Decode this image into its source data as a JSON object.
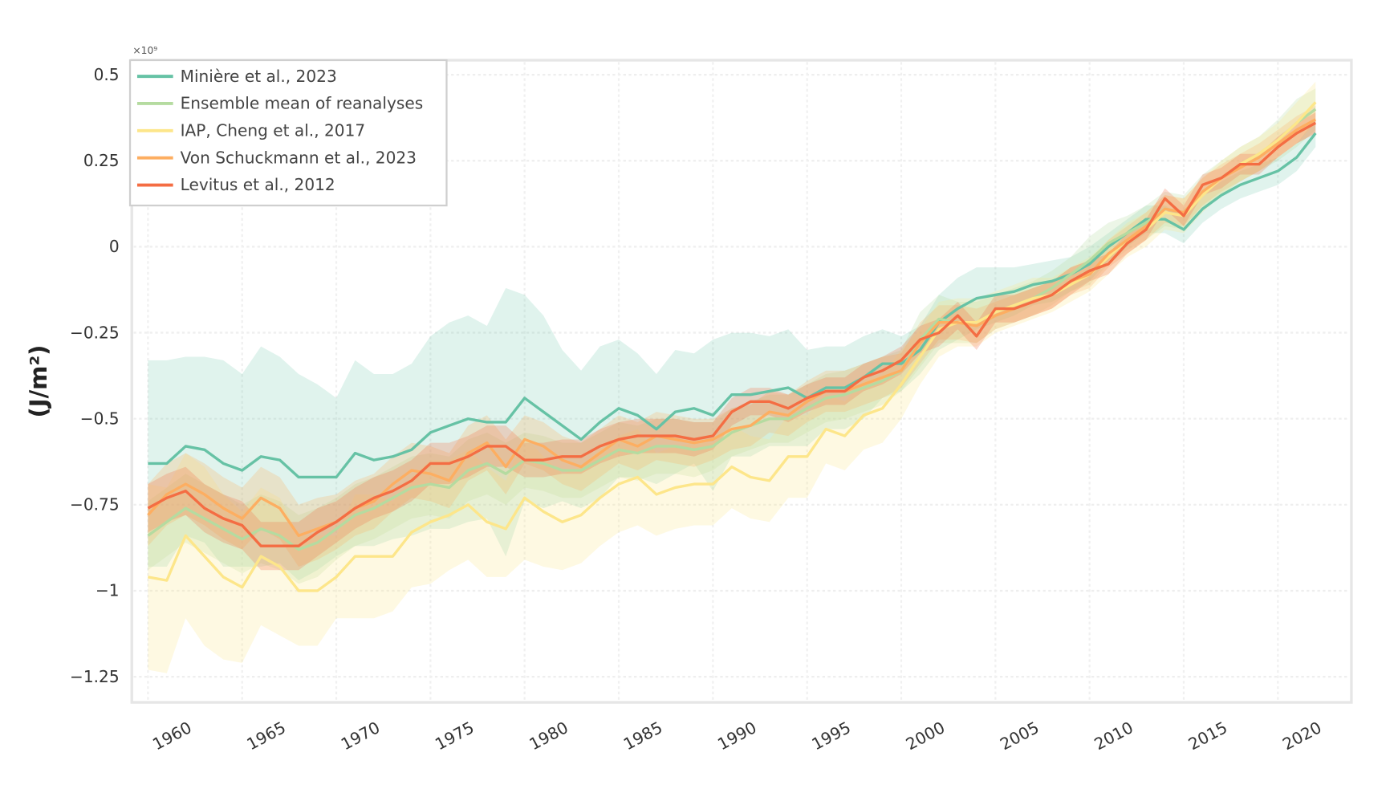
{
  "chart_data": {
    "type": "line",
    "title": "",
    "xlabel": "",
    "ylabel": "(J/m²)",
    "y_multiplier": "×10⁹",
    "xlim": [
      1958,
      2023
    ],
    "ylim": [
      -1.3,
      0.55
    ],
    "grid": true,
    "legend_position": "top-left",
    "x_ticks": [
      "1960",
      "1965",
      "1970",
      "1975",
      "1980",
      "1985",
      "1990",
      "1995",
      "2000",
      "2005",
      "2010",
      "2015",
      "2020"
    ],
    "y_ticks": [
      {
        "value": 0.5,
        "label": "0.5"
      },
      {
        "value": 0.25,
        "label": "0.25"
      },
      {
        "value": 0,
        "label": "0"
      },
      {
        "value": -0.25,
        "label": "−0.25"
      },
      {
        "value": -0.5,
        "label": "−0.5"
      },
      {
        "value": -0.75,
        "label": "−0.75"
      },
      {
        "value": -1,
        "label": "−1"
      },
      {
        "value": -1.25,
        "label": "−1.25"
      }
    ],
    "x_start": 1960,
    "series": [
      {
        "name": "Minière et al., 2023",
        "color": "#66c2a5",
        "values": [
          -0.63,
          -0.63,
          -0.58,
          -0.59,
          -0.63,
          -0.65,
          -0.61,
          -0.62,
          -0.67,
          -0.67,
          -0.67,
          -0.6,
          -0.62,
          -0.61,
          -0.59,
          -0.54,
          -0.52,
          -0.5,
          -0.51,
          -0.51,
          -0.44,
          -0.48,
          -0.52,
          -0.56,
          -0.51,
          -0.47,
          -0.49,
          -0.53,
          -0.48,
          -0.47,
          -0.49,
          -0.43,
          -0.43,
          -0.42,
          -0.41,
          -0.44,
          -0.41,
          -0.41,
          -0.38,
          -0.34,
          -0.34,
          -0.3,
          -0.22,
          -0.18,
          -0.15,
          -0.14,
          -0.13,
          -0.11,
          -0.1,
          -0.08,
          -0.05,
          0.0,
          0.04,
          0.08,
          0.08,
          0.05,
          0.11,
          0.15,
          0.18,
          0.2,
          0.22,
          0.26,
          0.33
        ],
        "uncertainty": [
          0.3,
          0.3,
          0.26,
          0.27,
          0.3,
          0.28,
          0.32,
          0.3,
          0.3,
          0.27,
          0.23,
          0.27,
          0.25,
          0.24,
          0.25,
          0.28,
          0.3,
          0.3,
          0.28,
          0.39,
          0.3,
          0.28,
          0.22,
          0.2,
          0.22,
          0.2,
          0.18,
          0.16,
          0.18,
          0.16,
          0.22,
          0.18,
          0.18,
          0.16,
          0.17,
          0.14,
          0.12,
          0.12,
          0.12,
          0.1,
          0.08,
          0.07,
          0.08,
          0.09,
          0.09,
          0.08,
          0.07,
          0.06,
          0.06,
          0.05,
          0.05,
          0.04,
          0.04,
          0.04,
          0.04,
          0.04,
          0.04,
          0.04,
          0.04,
          0.04,
          0.04,
          0.04,
          0.04
        ]
      },
      {
        "name": "Ensemble mean of reanalyses",
        "color": "#b5dba0",
        "values": [
          -0.84,
          -0.8,
          -0.76,
          -0.79,
          -0.82,
          -0.85,
          -0.82,
          -0.84,
          -0.88,
          -0.86,
          -0.82,
          -0.78,
          -0.76,
          -0.73,
          -0.7,
          -0.69,
          -0.7,
          -0.65,
          -0.63,
          -0.66,
          -0.62,
          -0.63,
          -0.65,
          -0.65,
          -0.62,
          -0.59,
          -0.6,
          -0.58,
          -0.58,
          -0.59,
          -0.58,
          -0.54,
          -0.52,
          -0.5,
          -0.5,
          -0.47,
          -0.44,
          -0.43,
          -0.41,
          -0.39,
          -0.36,
          -0.27,
          -0.21,
          -0.22,
          -0.22,
          -0.19,
          -0.17,
          -0.15,
          -0.12,
          -0.08,
          -0.04,
          0.01,
          0.04,
          0.07,
          0.11,
          0.1,
          0.16,
          0.2,
          0.24,
          0.27,
          0.31,
          0.36,
          0.4
        ],
        "uncertainty": [
          0.1,
          0.1,
          0.1,
          0.1,
          0.1,
          0.1,
          0.1,
          0.1,
          0.1,
          0.1,
          0.09,
          0.09,
          0.09,
          0.09,
          0.09,
          0.09,
          0.09,
          0.09,
          0.09,
          0.09,
          0.08,
          0.08,
          0.08,
          0.08,
          0.08,
          0.08,
          0.08,
          0.08,
          0.08,
          0.08,
          0.07,
          0.07,
          0.07,
          0.07,
          0.07,
          0.07,
          0.07,
          0.07,
          0.07,
          0.07,
          0.06,
          0.08,
          0.07,
          0.06,
          0.06,
          0.05,
          0.05,
          0.05,
          0.05,
          0.05,
          0.07,
          0.06,
          0.05,
          0.05,
          0.05,
          0.05,
          0.05,
          0.05,
          0.05,
          0.05,
          0.06,
          0.07,
          0.06
        ]
      },
      {
        "name": "IAP, Cheng et al., 2017",
        "color": "#fde68a",
        "values": [
          -0.96,
          -0.97,
          -0.84,
          -0.9,
          -0.96,
          -0.99,
          -0.9,
          -0.93,
          -1.0,
          -1.0,
          -0.96,
          -0.9,
          -0.9,
          -0.9,
          -0.83,
          -0.8,
          -0.78,
          -0.75,
          -0.8,
          -0.82,
          -0.73,
          -0.77,
          -0.8,
          -0.78,
          -0.73,
          -0.69,
          -0.67,
          -0.72,
          -0.7,
          -0.69,
          -0.69,
          -0.64,
          -0.67,
          -0.68,
          -0.61,
          -0.61,
          -0.53,
          -0.55,
          -0.49,
          -0.47,
          -0.4,
          -0.32,
          -0.24,
          -0.22,
          -0.22,
          -0.19,
          -0.17,
          -0.15,
          -0.14,
          -0.11,
          -0.08,
          -0.03,
          0.02,
          0.05,
          0.1,
          0.09,
          0.15,
          0.2,
          0.24,
          0.27,
          0.31,
          0.36,
          0.42
        ],
        "uncertainty": [
          0.27,
          0.27,
          0.24,
          0.26,
          0.24,
          0.22,
          0.2,
          0.2,
          0.16,
          0.16,
          0.12,
          0.18,
          0.18,
          0.16,
          0.16,
          0.18,
          0.16,
          0.16,
          0.16,
          0.14,
          0.18,
          0.16,
          0.14,
          0.14,
          0.14,
          0.14,
          0.14,
          0.12,
          0.12,
          0.12,
          0.12,
          0.12,
          0.12,
          0.12,
          0.12,
          0.12,
          0.1,
          0.1,
          0.1,
          0.1,
          0.1,
          0.08,
          0.08,
          0.07,
          0.07,
          0.06,
          0.06,
          0.06,
          0.05,
          0.05,
          0.05,
          0.05,
          0.05,
          0.05,
          0.05,
          0.05,
          0.05,
          0.05,
          0.05,
          0.05,
          0.05,
          0.06,
          0.06
        ]
      },
      {
        "name": "Von Schuckmann et al., 2023",
        "color": "#fdae61",
        "values": [
          -0.78,
          -0.72,
          -0.69,
          -0.72,
          -0.76,
          -0.79,
          -0.73,
          -0.76,
          -0.84,
          -0.82,
          -0.8,
          -0.76,
          -0.74,
          -0.69,
          -0.65,
          -0.66,
          -0.68,
          -0.6,
          -0.57,
          -0.64,
          -0.56,
          -0.58,
          -0.62,
          -0.64,
          -0.6,
          -0.56,
          -0.58,
          -0.55,
          -0.56,
          -0.57,
          -0.56,
          -0.53,
          -0.52,
          -0.48,
          -0.49,
          -0.45,
          -0.42,
          -0.42,
          -0.4,
          -0.38,
          -0.36,
          -0.28,
          -0.22,
          -0.22,
          -0.23,
          -0.2,
          -0.18,
          -0.16,
          -0.14,
          -0.1,
          -0.08,
          -0.02,
          0.02,
          0.06,
          0.11,
          0.1,
          0.16,
          0.2,
          0.23,
          0.26,
          0.3,
          0.34,
          0.37
        ],
        "uncertainty": [
          0.09,
          0.09,
          0.09,
          0.09,
          0.09,
          0.09,
          0.09,
          0.09,
          0.09,
          0.09,
          0.08,
          0.08,
          0.08,
          0.08,
          0.08,
          0.08,
          0.08,
          0.08,
          0.08,
          0.08,
          0.07,
          0.07,
          0.07,
          0.07,
          0.07,
          0.07,
          0.07,
          0.07,
          0.07,
          0.07,
          0.06,
          0.06,
          0.06,
          0.06,
          0.06,
          0.06,
          0.06,
          0.06,
          0.06,
          0.06,
          0.05,
          0.06,
          0.05,
          0.05,
          0.05,
          0.04,
          0.04,
          0.04,
          0.04,
          0.04,
          0.04,
          0.04,
          0.04,
          0.04,
          0.04,
          0.04,
          0.04,
          0.04,
          0.04,
          0.04,
          0.04,
          0.04,
          0.04
        ]
      },
      {
        "name": "Levitus et al., 2012",
        "color": "#f46d43",
        "values": [
          -0.76,
          -0.73,
          -0.71,
          -0.76,
          -0.79,
          -0.81,
          -0.87,
          -0.87,
          -0.87,
          -0.83,
          -0.8,
          -0.76,
          -0.73,
          -0.71,
          -0.68,
          -0.63,
          -0.63,
          -0.61,
          -0.58,
          -0.58,
          -0.62,
          -0.62,
          -0.61,
          -0.61,
          -0.58,
          -0.56,
          -0.55,
          -0.55,
          -0.55,
          -0.56,
          -0.55,
          -0.48,
          -0.45,
          -0.45,
          -0.47,
          -0.44,
          -0.42,
          -0.42,
          -0.38,
          -0.36,
          -0.33,
          -0.27,
          -0.25,
          -0.2,
          -0.26,
          -0.18,
          -0.18,
          -0.16,
          -0.14,
          -0.1,
          -0.07,
          -0.05,
          0.01,
          0.05,
          0.14,
          0.09,
          0.18,
          0.2,
          0.24,
          0.24,
          0.29,
          0.33,
          0.36
        ],
        "uncertainty": [
          0.07,
          0.07,
          0.07,
          0.07,
          0.07,
          0.07,
          0.07,
          0.07,
          0.07,
          0.07,
          0.06,
          0.06,
          0.06,
          0.06,
          0.06,
          0.06,
          0.06,
          0.06,
          0.06,
          0.06,
          0.05,
          0.05,
          0.05,
          0.05,
          0.05,
          0.05,
          0.05,
          0.05,
          0.05,
          0.05,
          0.04,
          0.04,
          0.04,
          0.04,
          0.04,
          0.04,
          0.04,
          0.04,
          0.04,
          0.04,
          0.04,
          0.04,
          0.04,
          0.04,
          0.04,
          0.04,
          0.04,
          0.04,
          0.04,
          0.04,
          0.03,
          0.03,
          0.03,
          0.03,
          0.03,
          0.03,
          0.03,
          0.03,
          0.03,
          0.03,
          0.03,
          0.03,
          0.03
        ]
      }
    ]
  }
}
